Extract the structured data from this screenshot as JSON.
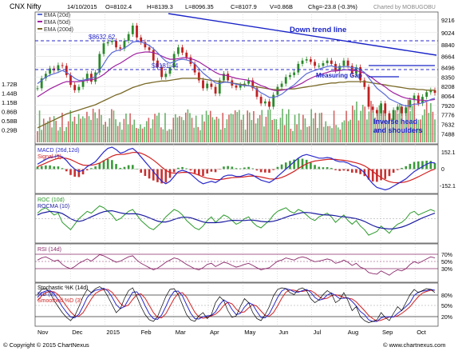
{
  "header": {
    "symbol": "CNX Nifty",
    "date": "14/10/2015",
    "open": "O=8102.4",
    "high": "H=8139.3",
    "low": "L=8096.35",
    "close": "C=8107.9",
    "volume": "V=0.86B",
    "change": "Chg=-23.8 (-0.3%)",
    "charted_by": "Charted by MOBUGOBU"
  },
  "footer": {
    "copyright": "© Copyright © 2015 ChartNexus",
    "site": "© www.chartnexus.com"
  },
  "chart_data": [
    {
      "type": "line",
      "panel": "price",
      "legend": [
        {
          "name": "EMA (20d)",
          "color": "#5b6bd6"
        },
        {
          "name": "EMA (50d)",
          "color": "#a020a0"
        },
        {
          "name": "EMA (200d)",
          "color": "#7a6a28"
        }
      ],
      "x_labels": [
        "Nov",
        "Dec",
        "2015",
        "Feb",
        "Mar",
        "Apr",
        "May",
        "Jun",
        "Jul",
        "Aug",
        "Sep",
        "Oct"
      ],
      "price_ticks": [
        9216,
        9024,
        8840,
        8664,
        8496,
        8350,
        8208,
        8064,
        7920,
        7776,
        7632,
        7488
      ],
      "volume_ticks": [
        "1.72B",
        "1.44B",
        "1.15B",
        "0.86B",
        "0.58B",
        "0.29B"
      ],
      "ylim": [
        7360,
        9300
      ],
      "price_close": [
        8180,
        8330,
        8400,
        8480,
        8450,
        8530,
        8520,
        8380,
        8230,
        8150,
        8200,
        8300,
        8400,
        8280,
        8420,
        8700,
        8860,
        8880,
        8900,
        8800,
        8780,
        8900,
        9000,
        9130,
        8950,
        8880,
        8800,
        8760,
        8600,
        8500,
        8350,
        8400,
        8500,
        8700,
        8800,
        8720,
        8650,
        8550,
        8420,
        8300,
        8180,
        8250,
        8200,
        8100,
        8300,
        8400,
        8300,
        8220,
        8190,
        8230,
        8250,
        8300,
        8180,
        8050,
        7950,
        7980,
        7900,
        8080,
        8200,
        8250,
        8350,
        8380,
        8420,
        8550,
        8600,
        8620,
        8580,
        8520,
        8520,
        8560,
        8600,
        8550,
        8450,
        8520,
        8600,
        8520,
        8400,
        8500,
        8300,
        8200,
        7900,
        7850,
        7800,
        7950,
        7800,
        7700,
        7850,
        7900,
        7800,
        7890,
        8000,
        8070,
        7950,
        8050,
        8120,
        8150,
        8110
      ],
      "ema20": [
        8250,
        8300,
        8350,
        8380,
        8400,
        8420,
        8450,
        8420,
        8380,
        8330,
        8300,
        8300,
        8320,
        8330,
        8360,
        8450,
        8550,
        8650,
        8720,
        8750,
        8760,
        8790,
        8830,
        8880,
        8890,
        8880,
        8860,
        8830,
        8780,
        8720,
        8650,
        8590,
        8560,
        8580,
        8610,
        8620,
        8610,
        8590,
        8550,
        8480,
        8410,
        8360,
        8310,
        8260,
        8250,
        8270,
        8270,
        8260,
        8240,
        8230,
        8220,
        8220,
        8200,
        8160,
        8110,
        8080,
        8040,
        8040,
        8060,
        8090,
        8140,
        8190,
        8230,
        8290,
        8350,
        8400,
        8430,
        8450,
        8470,
        8490,
        8510,
        8520,
        8500,
        8500,
        8510,
        8510,
        8490,
        8490,
        8460,
        8420,
        8340,
        8260,
        8180,
        8130,
        8080,
        8020,
        7990,
        7960,
        7930,
        7910,
        7920,
        7940,
        7940,
        7960,
        7980,
        8010,
        8030
      ],
      "ema50": [
        8050,
        8090,
        8130,
        8170,
        8200,
        8230,
        8260,
        8280,
        8280,
        8280,
        8280,
        8290,
        8300,
        8310,
        8320,
        8350,
        8390,
        8440,
        8490,
        8530,
        8560,
        8600,
        8640,
        8680,
        8710,
        8720,
        8730,
        8730,
        8720,
        8700,
        8670,
        8640,
        8620,
        8620,
        8630,
        8640,
        8640,
        8630,
        8610,
        8580,
        8540,
        8500,
        8460,
        8420,
        8390,
        8380,
        8370,
        8350,
        8330,
        8320,
        8310,
        8300,
        8280,
        8250,
        8220,
        8200,
        8170,
        8150,
        8140,
        8150,
        8160,
        8180,
        8200,
        8230,
        8260,
        8300,
        8330,
        8360,
        8380,
        8400,
        8420,
        8440,
        8440,
        8450,
        8460,
        8460,
        8450,
        8450,
        8430,
        8410,
        8370,
        8330,
        8280,
        8240,
        8200,
        8150,
        8110,
        8080,
        8050,
        8030,
        8020,
        8010,
        8000,
        8000,
        7990,
        8000,
        8010
      ],
      "ema200": [
        7580,
        7610,
        7640,
        7670,
        7700,
        7730,
        7760,
        7790,
        7810,
        7830,
        7850,
        7870,
        7890,
        7910,
        7930,
        7960,
        7990,
        8020,
        8050,
        8080,
        8100,
        8130,
        8160,
        8190,
        8210,
        8230,
        8250,
        8260,
        8270,
        8280,
        8290,
        8290,
        8300,
        8310,
        8320,
        8330,
        8330,
        8330,
        8330,
        8330,
        8320,
        8310,
        8300,
        8290,
        8280,
        8280,
        8270,
        8260,
        8250,
        8240,
        8230,
        8220,
        8210,
        8200,
        8190,
        8180,
        8170,
        8160,
        8160,
        8160,
        8160,
        8170,
        8170,
        8180,
        8190,
        8200,
        8210,
        8220,
        8230,
        8240,
        8250,
        8260,
        8260,
        8270,
        8270,
        8280,
        8280,
        8280,
        8280,
        8280,
        8270,
        8260,
        8250,
        8240,
        8230,
        8220,
        8210,
        8200,
        8190,
        8180,
        8170,
        8170,
        8160,
        8160,
        8150,
        8150,
        8150
      ],
      "annotations": [
        {
          "text": "Down trend line",
          "color": "#1a24c8"
        },
        {
          "text": "$8632.62",
          "color": "#2a2acc"
        },
        {
          "text": "$8181.44",
          "color": "#2a2acc"
        },
        {
          "text": "Measuring Gap",
          "color": "#1a24c8"
        },
        {
          "text": "Inverse head",
          "color": "#1a24c8"
        },
        {
          "text": "and shoulders",
          "color": "#1a24c8"
        }
      ]
    },
    {
      "type": "line",
      "panel": "macd",
      "legend": [
        {
          "name": "MACD (26d,12d)",
          "color": "#2a2acc"
        },
        {
          "name": "Signal (9)",
          "color": "#d22222"
        }
      ],
      "y_ticks": [
        "152.1",
        "0",
        "-152.1"
      ],
      "ylim": [
        -180,
        180
      ],
      "macd": [
        40,
        60,
        80,
        95,
        100,
        110,
        100,
        70,
        30,
        0,
        -20,
        -10,
        20,
        40,
        60,
        100,
        140,
        170,
        180,
        160,
        130,
        140,
        160,
        170,
        140,
        100,
        60,
        20,
        -20,
        -60,
        -100,
        -120,
        -100,
        -60,
        -20,
        -10,
        -20,
        -40,
        -70,
        -100,
        -120,
        -110,
        -100,
        -110,
        -90,
        -60,
        -50,
        -50,
        -60,
        -60,
        -50,
        -40,
        -50,
        -70,
        -90,
        -100,
        -110,
        -90,
        -60,
        -30,
        0,
        30,
        60,
        90,
        110,
        120,
        110,
        100,
        90,
        90,
        95,
        90,
        70,
        60,
        60,
        50,
        30,
        20,
        0,
        -30,
        -80,
        -120,
        -150,
        -160,
        -170,
        -160,
        -140,
        -120,
        -100,
        -80,
        -50,
        -20,
        0,
        20,
        40,
        55,
        50
      ],
      "signal": [
        20,
        35,
        50,
        65,
        78,
        88,
        92,
        88,
        78,
        62,
        45,
        33,
        30,
        32,
        38,
        50,
        68,
        88,
        106,
        118,
        120,
        122,
        128,
        136,
        137,
        130,
        116,
        97,
        73,
        47,
        17,
        -10,
        -28,
        -34,
        -31,
        -27,
        -26,
        -29,
        -37,
        -50,
        -64,
        -74,
        -79,
        -85,
        -86,
        -81,
        -75,
        -70,
        -68,
        -66,
        -63,
        -58,
        -56,
        -59,
        -65,
        -72,
        -80,
        -82,
        -78,
        -68,
        -54,
        -37,
        -18,
        4,
        25,
        44,
        57,
        66,
        71,
        75,
        79,
        81,
        79,
        75,
        72,
        67,
        59,
        51,
        41,
        27,
        6,
        -19,
        -46,
        -69,
        -89,
        -103,
        -110,
        -112,
        -110,
        -104,
        -93,
        -79,
        -63,
        -46,
        -29,
        -12,
        0
      ]
    },
    {
      "type": "line",
      "panel": "roc",
      "legend": [
        {
          "name": "ROC (10d)",
          "color": "#2a9a2a"
        },
        {
          "name": "ROCMA (10)",
          "color": "#1a1aa0"
        }
      ],
      "ylim": [
        -12,
        12
      ],
      "roc": [
        3,
        5,
        6,
        4,
        2,
        3,
        -2,
        -4,
        -6,
        -3,
        0,
        2,
        4,
        3,
        5,
        7,
        6,
        4,
        2,
        -1,
        0,
        2,
        4,
        5,
        2,
        -1,
        -3,
        -5,
        -6,
        -4,
        -2,
        1,
        3,
        5,
        4,
        2,
        -1,
        -3,
        -5,
        -6,
        -4,
        -1,
        1,
        -2,
        0,
        2,
        1,
        -1,
        -3,
        -2,
        0,
        1,
        -2,
        -4,
        -5,
        -3,
        -1,
        2,
        4,
        5,
        6,
        4,
        3,
        5,
        4,
        2,
        0,
        -1,
        1,
        2,
        3,
        1,
        -2,
        0,
        2,
        -1,
        -3,
        -1,
        -4,
        -6,
        -9,
        -8,
        -7,
        -4,
        -6,
        -8,
        -5,
        -3,
        -2,
        0,
        3,
        4,
        2,
        3,
        4,
        5,
        4
      ],
      "rocma": [
        2,
        3,
        3.5,
        4,
        3.8,
        3.5,
        2.8,
        1.5,
        0,
        -1,
        -1.5,
        -1,
        0,
        1,
        2,
        3,
        3.8,
        4.2,
        4.3,
        3.8,
        3.2,
        2.8,
        2.6,
        2.7,
        2.6,
        2.1,
        1.4,
        0.5,
        -0.5,
        -1.3,
        -1.8,
        -1.8,
        -1.2,
        -0.4,
        0.3,
        0.8,
        0.8,
        0.5,
        -0.2,
        -1,
        -1.8,
        -2.2,
        -2.2,
        -2.2,
        -2,
        -1.7,
        -1.2,
        -0.9,
        -0.9,
        -1,
        -1,
        -0.8,
        -0.8,
        -1.1,
        -1.5,
        -1.7,
        -1.7,
        -1.4,
        -0.8,
        0,
        0.8,
        1.6,
        2.2,
        2.8,
        3.3,
        3.4,
        3.2,
        2.8,
        2.4,
        2.1,
        2,
        1.9,
        1.6,
        1.2,
        1,
        0.8,
        0.4,
        0,
        -0.6,
        -1.5,
        -2.6,
        -3.7,
        -4.6,
        -5.1,
        -5.4,
        -5.6,
        -5.5,
        -5.1,
        -4.6,
        -3.8,
        -2.8,
        -1.7,
        -0.6,
        0.4,
        1.3,
        2.2,
        3
      ]
    },
    {
      "type": "line",
      "panel": "rsi",
      "legend": [
        {
          "name": "RSI (14d)",
          "color": "#8a2a6a"
        }
      ],
      "y_ticks": [
        "70%",
        "50%",
        "30%"
      ],
      "ylim": [
        20,
        85
      ],
      "rsi": [
        58,
        62,
        64,
        60,
        56,
        58,
        50,
        45,
        42,
        46,
        52,
        56,
        60,
        56,
        62,
        68,
        66,
        62,
        58,
        54,
        56,
        60,
        64,
        66,
        58,
        52,
        48,
        44,
        40,
        43,
        48,
        54,
        58,
        62,
        60,
        55,
        50,
        46,
        42,
        40,
        44,
        50,
        52,
        46,
        50,
        54,
        52,
        48,
        45,
        47,
        50,
        52,
        48,
        44,
        40,
        42,
        44,
        50,
        56,
        58,
        62,
        60,
        58,
        62,
        64,
        62,
        58,
        55,
        56,
        58,
        60,
        58,
        52,
        54,
        58,
        54,
        48,
        52,
        45,
        42,
        35,
        33,
        32,
        38,
        34,
        30,
        36,
        40,
        38,
        42,
        50,
        55,
        52,
        56,
        60,
        64,
        62
      ]
    },
    {
      "type": "line",
      "panel": "stochastic",
      "legend": [
        {
          "name": "Stochastic %K (14d)",
          "color": "#000000"
        },
        {
          "name": "%D (3)",
          "color": "#2a2acc"
        },
        {
          "name": "Smoothed %D (3)",
          "color": "#d22222"
        }
      ],
      "y_ticks": [
        "80%",
        "50%",
        "20%"
      ],
      "ylim": [
        0,
        100
      ],
      "k": [
        75,
        88,
        90,
        80,
        60,
        45,
        30,
        18,
        10,
        22,
        45,
        70,
        88,
        80,
        90,
        95,
        88,
        70,
        50,
        30,
        40,
        65,
        85,
        92,
        70,
        45,
        25,
        12,
        8,
        20,
        45,
        70,
        88,
        90,
        75,
        50,
        25,
        12,
        8,
        22,
        30,
        15,
        25,
        55,
        70,
        60,
        35,
        18,
        22,
        45,
        65,
        55,
        30,
        15,
        10,
        25,
        45,
        72,
        88,
        92,
        90,
        80,
        75,
        88,
        92,
        85,
        65,
        55,
        62,
        75,
        85,
        78,
        55,
        62,
        80,
        60,
        35,
        45,
        20,
        10,
        5,
        8,
        12,
        30,
        18,
        10,
        28,
        45,
        35,
        55,
        75,
        88,
        80,
        85,
        90,
        88,
        80
      ],
      "d": [
        68,
        80,
        84,
        86,
        77,
        62,
        45,
        31,
        19,
        17,
        26,
        46,
        68,
        79,
        86,
        88,
        91,
        84,
        69,
        50,
        40,
        45,
        63,
        81,
        82,
        69,
        47,
        27,
        15,
        13,
        24,
        45,
        68,
        83,
        84,
        72,
        50,
        29,
        15,
        14,
        20,
        22,
        23,
        32,
        50,
        62,
        55,
        38,
        25,
        28,
        44,
        55,
        50,
        33,
        18,
        17,
        27,
        47,
        68,
        84,
        90,
        87,
        82,
        81,
        85,
        88,
        81,
        68,
        61,
        64,
        74,
        79,
        73,
        65,
        66,
        67,
        58,
        47,
        33,
        25,
        12,
        8,
        8,
        17,
        20,
        19,
        19,
        28,
        36,
        45,
        55,
        73,
        81,
        84,
        85,
        88,
        86
      ],
      "slow": [
        60,
        72,
        80,
        83,
        82,
        75,
        61,
        46,
        32,
        22,
        21,
        30,
        47,
        64,
        78,
        84,
        88,
        88,
        81,
        68,
        53,
        45,
        49,
        63,
        75,
        77,
        66,
        48,
        30,
        18,
        17,
        27,
        46,
        65,
        78,
        80,
        69,
        50,
        31,
        19,
        16,
        18,
        22,
        26,
        35,
        48,
        56,
        52,
        39,
        30,
        32,
        42,
        50,
        46,
        34,
        23,
        21,
        30,
        47,
        66,
        81,
        87,
        86,
        83,
        83,
        85,
        85,
        79,
        70,
        64,
        66,
        72,
        75,
        72,
        68,
        66,
        64,
        57,
        46,
        35,
        23,
        15,
        9,
        11,
        15,
        19,
        19,
        22,
        28,
        36,
        45,
        58,
        70,
        79,
        83,
        86,
        86
      ]
    }
  ]
}
